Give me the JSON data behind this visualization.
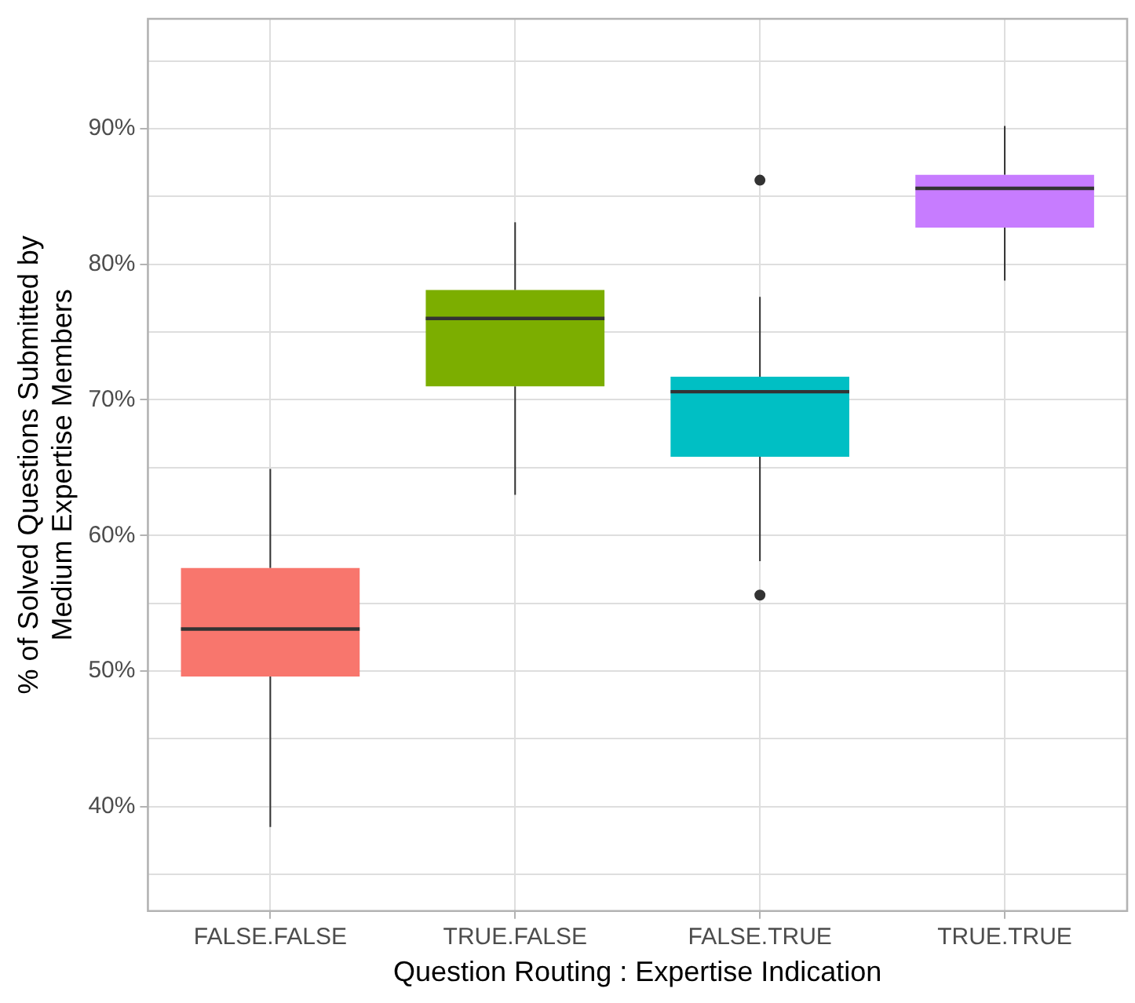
{
  "chart_data": {
    "type": "box",
    "xlabel": "Question Routing : Expertise Indication",
    "ylabel": "% of Solved Questions Submitted by\nMedium Expertise Members",
    "categories": [
      "FALSE.FALSE",
      "TRUE.FALSE",
      "FALSE.TRUE",
      "TRUE.TRUE"
    ],
    "colors": [
      "#f8766d",
      "#7cae00",
      "#00bfc4",
      "#c77cff"
    ],
    "boxes": [
      {
        "low": 38.5,
        "q1": 49.6,
        "median": 53.1,
        "q3": 57.6,
        "high": 64.9
      },
      {
        "low": 63.0,
        "q1": 71.0,
        "median": 76.0,
        "q3": 78.1,
        "high": 83.1
      },
      {
        "low": 58.1,
        "q1": 65.8,
        "median": 70.6,
        "q3": 71.7,
        "high": 77.6,
        "outliers": [
          86.2,
          55.6
        ]
      },
      {
        "low": 78.8,
        "q1": 82.7,
        "median": 85.6,
        "q3": 86.6,
        "high": 90.2
      }
    ],
    "ylim": [
      32.3,
      98.1
    ],
    "yticks": [
      {
        "value": 35,
        "label": null
      },
      {
        "value": 40,
        "label": "40%"
      },
      {
        "value": 45,
        "label": null
      },
      {
        "value": 50,
        "label": "50%"
      },
      {
        "value": 55,
        "label": null
      },
      {
        "value": 60,
        "label": "60%"
      },
      {
        "value": 65,
        "label": null
      },
      {
        "value": 70,
        "label": "70%"
      },
      {
        "value": 75,
        "label": null
      },
      {
        "value": 80,
        "label": "80%"
      },
      {
        "value": 85,
        "label": null
      },
      {
        "value": 90,
        "label": "90%"
      },
      {
        "value": 95,
        "label": null
      }
    ],
    "grid": true,
    "legend": false
  }
}
